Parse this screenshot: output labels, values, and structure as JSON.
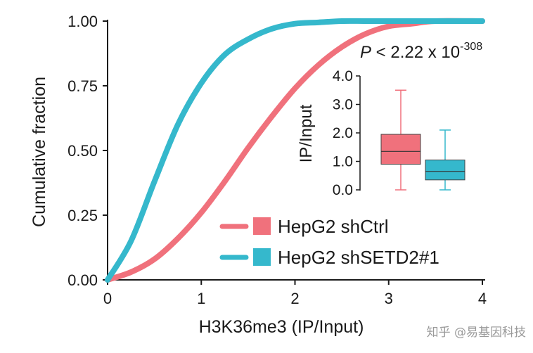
{
  "chart_data": {
    "type": "line",
    "title": "",
    "xlabel": "H3K36me3 (IP/Input)",
    "ylabel": "Cumulative fraction",
    "xlim": [
      0,
      4
    ],
    "ylim": [
      0,
      1
    ],
    "xticks": [
      "0",
      "1",
      "2",
      "3",
      "4"
    ],
    "yticks": [
      "0.00",
      "0.25",
      "0.50",
      "0.75",
      "1.00"
    ],
    "grid": false,
    "legend_position": "bottom-right",
    "annotation": {
      "prefix": "P",
      "text": " < 2.22 x 10",
      "exponent": "-308"
    },
    "series": [
      {
        "name": "HepG2 shCtrl",
        "color": "#f0717c",
        "x": [
          0,
          0.25,
          0.5,
          0.75,
          1.0,
          1.25,
          1.5,
          1.75,
          2.0,
          2.25,
          2.5,
          2.75,
          3.0,
          3.25,
          3.5,
          4.0
        ],
        "y": [
          0,
          0.03,
          0.08,
          0.16,
          0.26,
          0.38,
          0.51,
          0.63,
          0.74,
          0.83,
          0.9,
          0.95,
          0.98,
          0.99,
          1.0,
          1.0
        ]
      },
      {
        "name": "HepG2 shSETD2#1",
        "color": "#35b8cc",
        "x": [
          0,
          0.25,
          0.5,
          0.75,
          1.0,
          1.25,
          1.5,
          1.75,
          2.0,
          2.25,
          2.5,
          2.75,
          3.0,
          4.0
        ],
        "y": [
          0,
          0.15,
          0.38,
          0.6,
          0.76,
          0.87,
          0.93,
          0.97,
          0.99,
          0.995,
          1.0,
          1.0,
          1.0,
          1.0
        ]
      }
    ],
    "inset": {
      "type": "box",
      "ylabel": "IP/Input",
      "ylim": [
        0,
        4
      ],
      "yticks": [
        "0.0",
        "1.0",
        "2.0",
        "3.0",
        "4.0"
      ],
      "boxes": [
        {
          "name": "HepG2 shCtrl",
          "color": "#f0717c",
          "min": 0.0,
          "q1": 0.9,
          "median": 1.35,
          "q3": 1.95,
          "max": 3.5
        },
        {
          "name": "HepG2 shSETD2#1",
          "color": "#35b8cc",
          "min": 0.0,
          "q1": 0.35,
          "median": 0.65,
          "q3": 1.05,
          "max": 2.1
        }
      ]
    }
  },
  "watermark": "知乎 @易基因科技"
}
